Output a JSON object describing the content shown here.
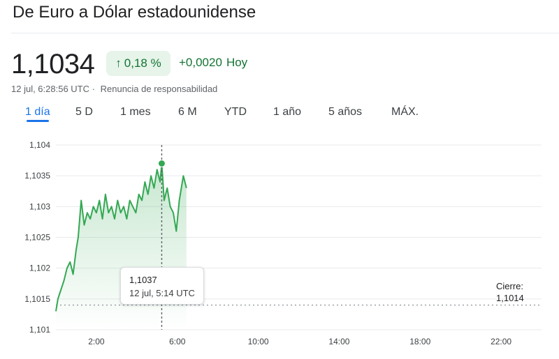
{
  "header": {
    "title": "De Euro a Dólar estadounidense"
  },
  "quote": {
    "price": "1,1034",
    "change_pct": "0,18 %",
    "change_abs": "+0,0020",
    "period": "Hoy",
    "timestamp": "12 jul, 6:28:56 UTC",
    "separator": "·",
    "disclaimer": "Renuncia de responsabilidad",
    "up_color": "#137333",
    "badge_bg": "#e6f4ea",
    "icons": {
      "change": "arrow-up-icon"
    }
  },
  "tabs": [
    {
      "label": "1 día",
      "active": true
    },
    {
      "label": "5 D",
      "active": false
    },
    {
      "label": "1 mes",
      "active": false
    },
    {
      "label": "6 M",
      "active": false
    },
    {
      "label": "YTD",
      "active": false
    },
    {
      "label": "1 año",
      "active": false
    },
    {
      "label": "5 años",
      "active": false
    },
    {
      "label": "MÁX.",
      "active": false
    }
  ],
  "tooltip": {
    "value": "1,1037",
    "time": "12 jul, 5:14 UTC"
  },
  "close": {
    "label": "Cierre:",
    "value": "1,1014"
  },
  "chart_data": {
    "type": "line",
    "x_unit": "hours UTC",
    "xlim": [
      0,
      24
    ],
    "ylim": [
      1.101,
      1.104
    ],
    "y_ticks": [
      "1,101",
      "1,1015",
      "1,102",
      "1,1025",
      "1,103",
      "1,1035",
      "1,104"
    ],
    "x_ticks": [
      "2:00",
      "6:00",
      "10:00",
      "14:00",
      "18:00",
      "22:00"
    ],
    "previous_close": 1.1014,
    "hover": {
      "x": 5.23,
      "y": 1.1037
    },
    "line_color": "#34a853",
    "grid": true,
    "series": [
      {
        "x": [
          0.0,
          0.1,
          0.2,
          0.4,
          0.55,
          0.7,
          0.85,
          1.0,
          1.1,
          1.25,
          1.4,
          1.55,
          1.7,
          1.85,
          2.0,
          2.15,
          2.3,
          2.45,
          2.6,
          2.75,
          2.9,
          3.05,
          3.2,
          3.35,
          3.5,
          3.65,
          3.8,
          3.95,
          4.1,
          4.25,
          4.4,
          4.55,
          4.7,
          4.85,
          5.0,
          5.15,
          5.23,
          5.35,
          5.5,
          5.65,
          5.8,
          5.95,
          6.1,
          6.2,
          6.3,
          6.45
        ],
        "y": [
          1.1013,
          1.1015,
          1.1016,
          1.1018,
          1.102,
          1.1021,
          1.1019,
          1.1023,
          1.1025,
          1.1031,
          1.1027,
          1.1029,
          1.1028,
          1.103,
          1.1029,
          1.1031,
          1.1028,
          1.1032,
          1.1029,
          1.103,
          1.1028,
          1.1031,
          1.1029,
          1.103,
          1.1028,
          1.1031,
          1.103,
          1.1029,
          1.1032,
          1.1031,
          1.1034,
          1.1032,
          1.1035,
          1.1033,
          1.1036,
          1.1034,
          1.1037,
          1.1031,
          1.1033,
          1.103,
          1.1029,
          1.1026,
          1.1031,
          1.1033,
          1.1035,
          1.1033
        ]
      }
    ]
  }
}
